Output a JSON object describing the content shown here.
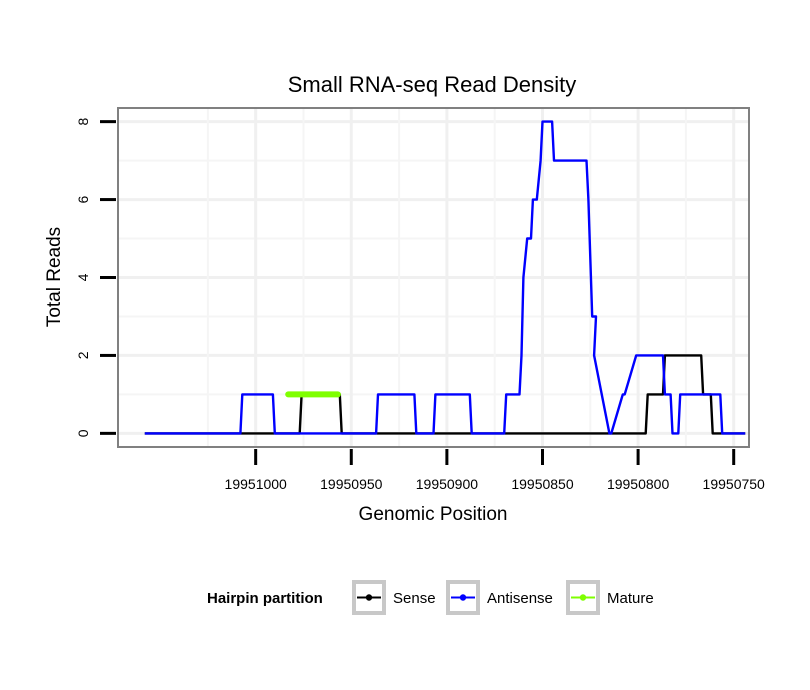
{
  "chart_data": {
    "type": "line",
    "title": "Small RNA-seq Read Density",
    "xlabel": "Genomic Position",
    "ylabel": "Total Reads",
    "x_reversed": true,
    "xlim": [
      19951072,
      19950742
    ],
    "ylim": [
      -0.35,
      8.35
    ],
    "xticks": [
      19951000,
      19950950,
      19950900,
      19950850,
      19950800,
      19950750
    ],
    "xtick_labels": [
      "19951000",
      "19950950",
      "19950900",
      "19950850",
      "19950800",
      "19950750"
    ],
    "yticks": [
      0,
      2,
      4,
      6,
      8
    ],
    "ytick_labels": [
      "0",
      "2",
      "4",
      "6",
      "8"
    ],
    "grid": true,
    "legend": {
      "title": "Hairpin partition",
      "position": "bottom",
      "entries": [
        "Sense",
        "Antisense",
        "Mature"
      ]
    },
    "series": [
      {
        "name": "Sense",
        "color": "#000000",
        "x": [
          19951058,
          19950977,
          19950976,
          19950956,
          19950955,
          19950796,
          19950795,
          19950787,
          19950786,
          19950779,
          19950778,
          19950767,
          19950766,
          19950762,
          19950761,
          19950744
        ],
        "y": [
          0,
          0,
          1,
          1,
          0,
          0,
          1,
          1,
          2,
          2,
          2,
          2,
          1,
          1,
          0,
          0
        ]
      },
      {
        "name": "Antisense",
        "color": "#0000ff",
        "x": [
          19951058,
          19951008,
          19951007,
          19950991,
          19950990,
          19950975,
          19950974,
          19950937,
          19950936,
          19950917,
          19950916,
          19950907,
          19950906,
          19950888,
          19950887,
          19950870,
          19950869,
          19950862,
          19950861,
          19950860,
          19950858,
          19950856,
          19950855,
          19950853,
          19950851,
          19950850,
          19950849,
          19950845,
          19950844,
          19950836,
          19950835,
          19950827,
          19950826,
          19950824,
          19950822,
          19950823,
          19950815,
          19950814,
          19950808,
          19950807,
          19950801,
          19950800,
          19950787,
          19950786,
          19950783,
          19950782,
          19950779,
          19950778,
          19950775,
          19950774,
          19950757,
          19950756,
          19950744
        ],
        "y": [
          0,
          0,
          1,
          1,
          0,
          0,
          0,
          0,
          1,
          1,
          0,
          0,
          1,
          1,
          0,
          0,
          1,
          1,
          2,
          4,
          5,
          5,
          6,
          6,
          7,
          8,
          8,
          8,
          7,
          7,
          7,
          7,
          6,
          3,
          3,
          2,
          0,
          0,
          1,
          1,
          2,
          2,
          2,
          1,
          1,
          0,
          0,
          1,
          1,
          1,
          1,
          0,
          0
        ]
      },
      {
        "name": "Mature",
        "color": "#7fff00",
        "x": [
          19950983,
          19950957
        ],
        "y": [
          1,
          1
        ]
      }
    ]
  }
}
